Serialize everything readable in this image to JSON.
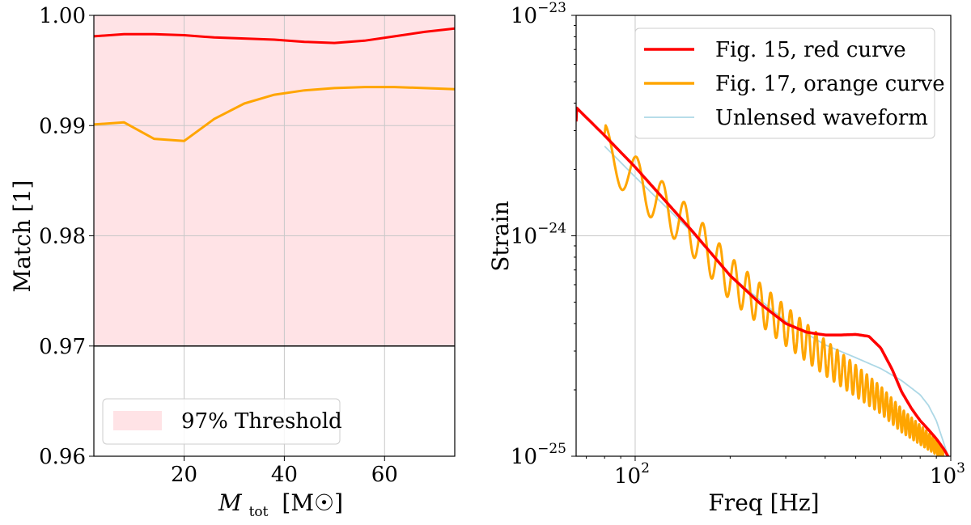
{
  "chart_data": [
    {
      "type": "line",
      "title": "",
      "xlabel": "M_tot [M☉]",
      "xlabel_main": "M",
      "xlabel_sub": "tot",
      "xlabel_unit": "[M☉]",
      "ylabel": "Match [1]",
      "xlim": [
        2,
        74
      ],
      "ylim": [
        0.96,
        1.0
      ],
      "grid": true,
      "x_ticks": [
        20,
        40,
        60
      ],
      "x_tick_labels": [
        "20",
        "40",
        "60"
      ],
      "y_ticks": [
        0.96,
        0.97,
        0.98,
        0.99,
        1.0
      ],
      "y_tick_labels": [
        "0.96",
        "0.97",
        "0.98",
        "0.99",
        "1.00"
      ],
      "threshold": {
        "label": "97% Threshold",
        "value": 0.97,
        "fill_color": "#ffe3e6"
      },
      "legend_position": "lower-left",
      "series": [
        {
          "name": "red",
          "color": "#ff0000",
          "x": [
            2,
            8,
            14,
            20,
            26,
            32,
            38,
            44,
            50,
            56,
            62,
            68,
            74
          ],
          "y": [
            0.9981,
            0.9983,
            0.9983,
            0.9982,
            0.998,
            0.9979,
            0.9978,
            0.9976,
            0.9975,
            0.9977,
            0.9981,
            0.9985,
            0.9988
          ]
        },
        {
          "name": "orange",
          "color": "#ffa500",
          "x": [
            2,
            8,
            14,
            20,
            26,
            32,
            38,
            44,
            50,
            56,
            62,
            68,
            74
          ],
          "y": [
            0.9901,
            0.9903,
            0.9888,
            0.9886,
            0.9906,
            0.992,
            0.9928,
            0.9932,
            0.9934,
            0.9935,
            0.9935,
            0.9934,
            0.9933
          ]
        }
      ]
    },
    {
      "type": "line",
      "title": "",
      "xlabel": "Freq [Hz]",
      "ylabel": "Strain",
      "xscale": "log",
      "yscale": "log",
      "xlim": [
        65,
        1000
      ],
      "ylim": [
        1e-25,
        1e-23
      ],
      "grid": true,
      "x_ticks": [
        100,
        1000
      ],
      "x_tick_labels": [
        {
          "base": "10",
          "exp": "2"
        },
        {
          "base": "10",
          "exp": "3"
        }
      ],
      "y_ticks": [
        1e-25,
        1e-24,
        1e-23
      ],
      "y_tick_labels": [
        {
          "base": "10",
          "exp": "−25"
        },
        {
          "base": "10",
          "exp": "−24"
        },
        {
          "base": "10",
          "exp": "−23"
        }
      ],
      "legend_position": "upper-right",
      "series": [
        {
          "name": "Fig. 15, red curve",
          "color": "#ff0000",
          "kind": "smooth",
          "x": [
            65,
            65.3,
            80,
            100,
            150,
            200,
            250,
            300,
            350,
            400,
            450,
            500,
            550,
            600,
            650,
            700,
            750,
            800,
            850,
            900,
            950,
            980
          ],
          "y": [
            3.3e-24,
            3.8e-24,
            2.85e-24,
            2.05e-24,
            1.07e-24,
            6.6e-25,
            4.9e-25,
            4e-25,
            3.65e-25,
            3.55e-25,
            3.55e-25,
            3.57e-25,
            3.5e-25,
            3.1e-25,
            2.5e-25,
            1.95e-25,
            1.65e-25,
            1.45e-25,
            1.32e-25,
            1.2e-25,
            1.08e-25,
            1e-25
          ]
        },
        {
          "name": "Fig. 17, orange curve",
          "color": "#ffa500",
          "kind": "oscillating",
          "start_x": 80,
          "start_y": 2.9e-24,
          "base_x": [
            80,
            100,
            150,
            200,
            300,
            400,
            500,
            600,
            700,
            800,
            900,
            950
          ],
          "base_y": [
            2.5e-24,
            1.8e-24,
            1.05e-24,
            6.4e-25,
            3.9e-25,
            2.8e-25,
            2.2e-25,
            1.8e-25,
            1.45e-25,
            1.25e-25,
            1.1e-25,
            1e-25
          ],
          "oscillation_period_hz": 21,
          "oscillation_amplitude_start": 0.22,
          "oscillation_amplitude_end": 0.06
        },
        {
          "name": "Unlensed waveform",
          "color": "#add8e6",
          "kind": "smooth",
          "x": [
            80,
            100,
            150,
            200,
            300,
            400,
            500,
            600,
            700,
            800,
            850,
            900,
            950,
            980
          ],
          "y": [
            2.55e-24,
            1.85e-24,
            1.05e-24,
            6.6e-25,
            4.1e-25,
            3.2e-25,
            2.8e-25,
            2.5e-25,
            2.2e-25,
            1.9e-25,
            1.7e-25,
            1.45e-25,
            1.15e-25,
            1e-25
          ]
        }
      ]
    }
  ]
}
